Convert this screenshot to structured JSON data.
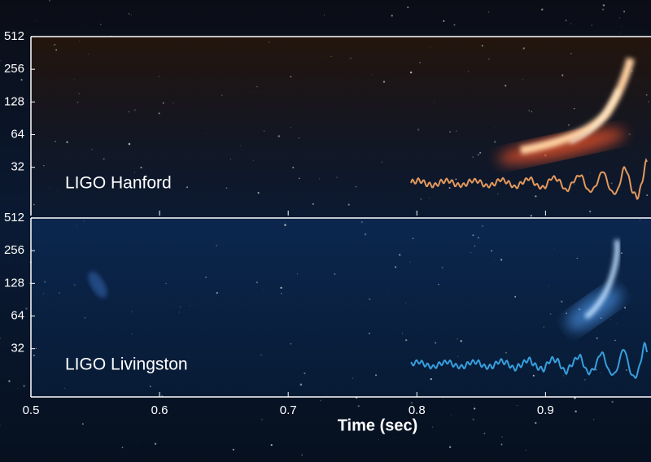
{
  "chart_data": [
    {
      "type": "spectrogram",
      "label": "LIGO Hanford",
      "color": "#f0a060",
      "ylim": [
        11.5,
        512
      ],
      "yticks": [
        32,
        64,
        128,
        256,
        512
      ],
      "log_y": true,
      "xlim": [
        0.5,
        0.982
      ],
      "xticks": [
        0.5,
        0.6,
        0.7,
        0.8,
        0.9
      ]
    },
    {
      "type": "spectrogram",
      "label": "LIGO Livingston",
      "color": "#3aa6e8",
      "ylim": [
        11.5,
        512
      ],
      "yticks": [
        32,
        64,
        128,
        256,
        512
      ],
      "log_y": true,
      "xlim": [
        0.5,
        0.982
      ],
      "xticks": [
        0.5,
        0.6,
        0.7,
        0.8,
        0.9
      ],
      "xlabel": "Time (sec)"
    }
  ]
}
